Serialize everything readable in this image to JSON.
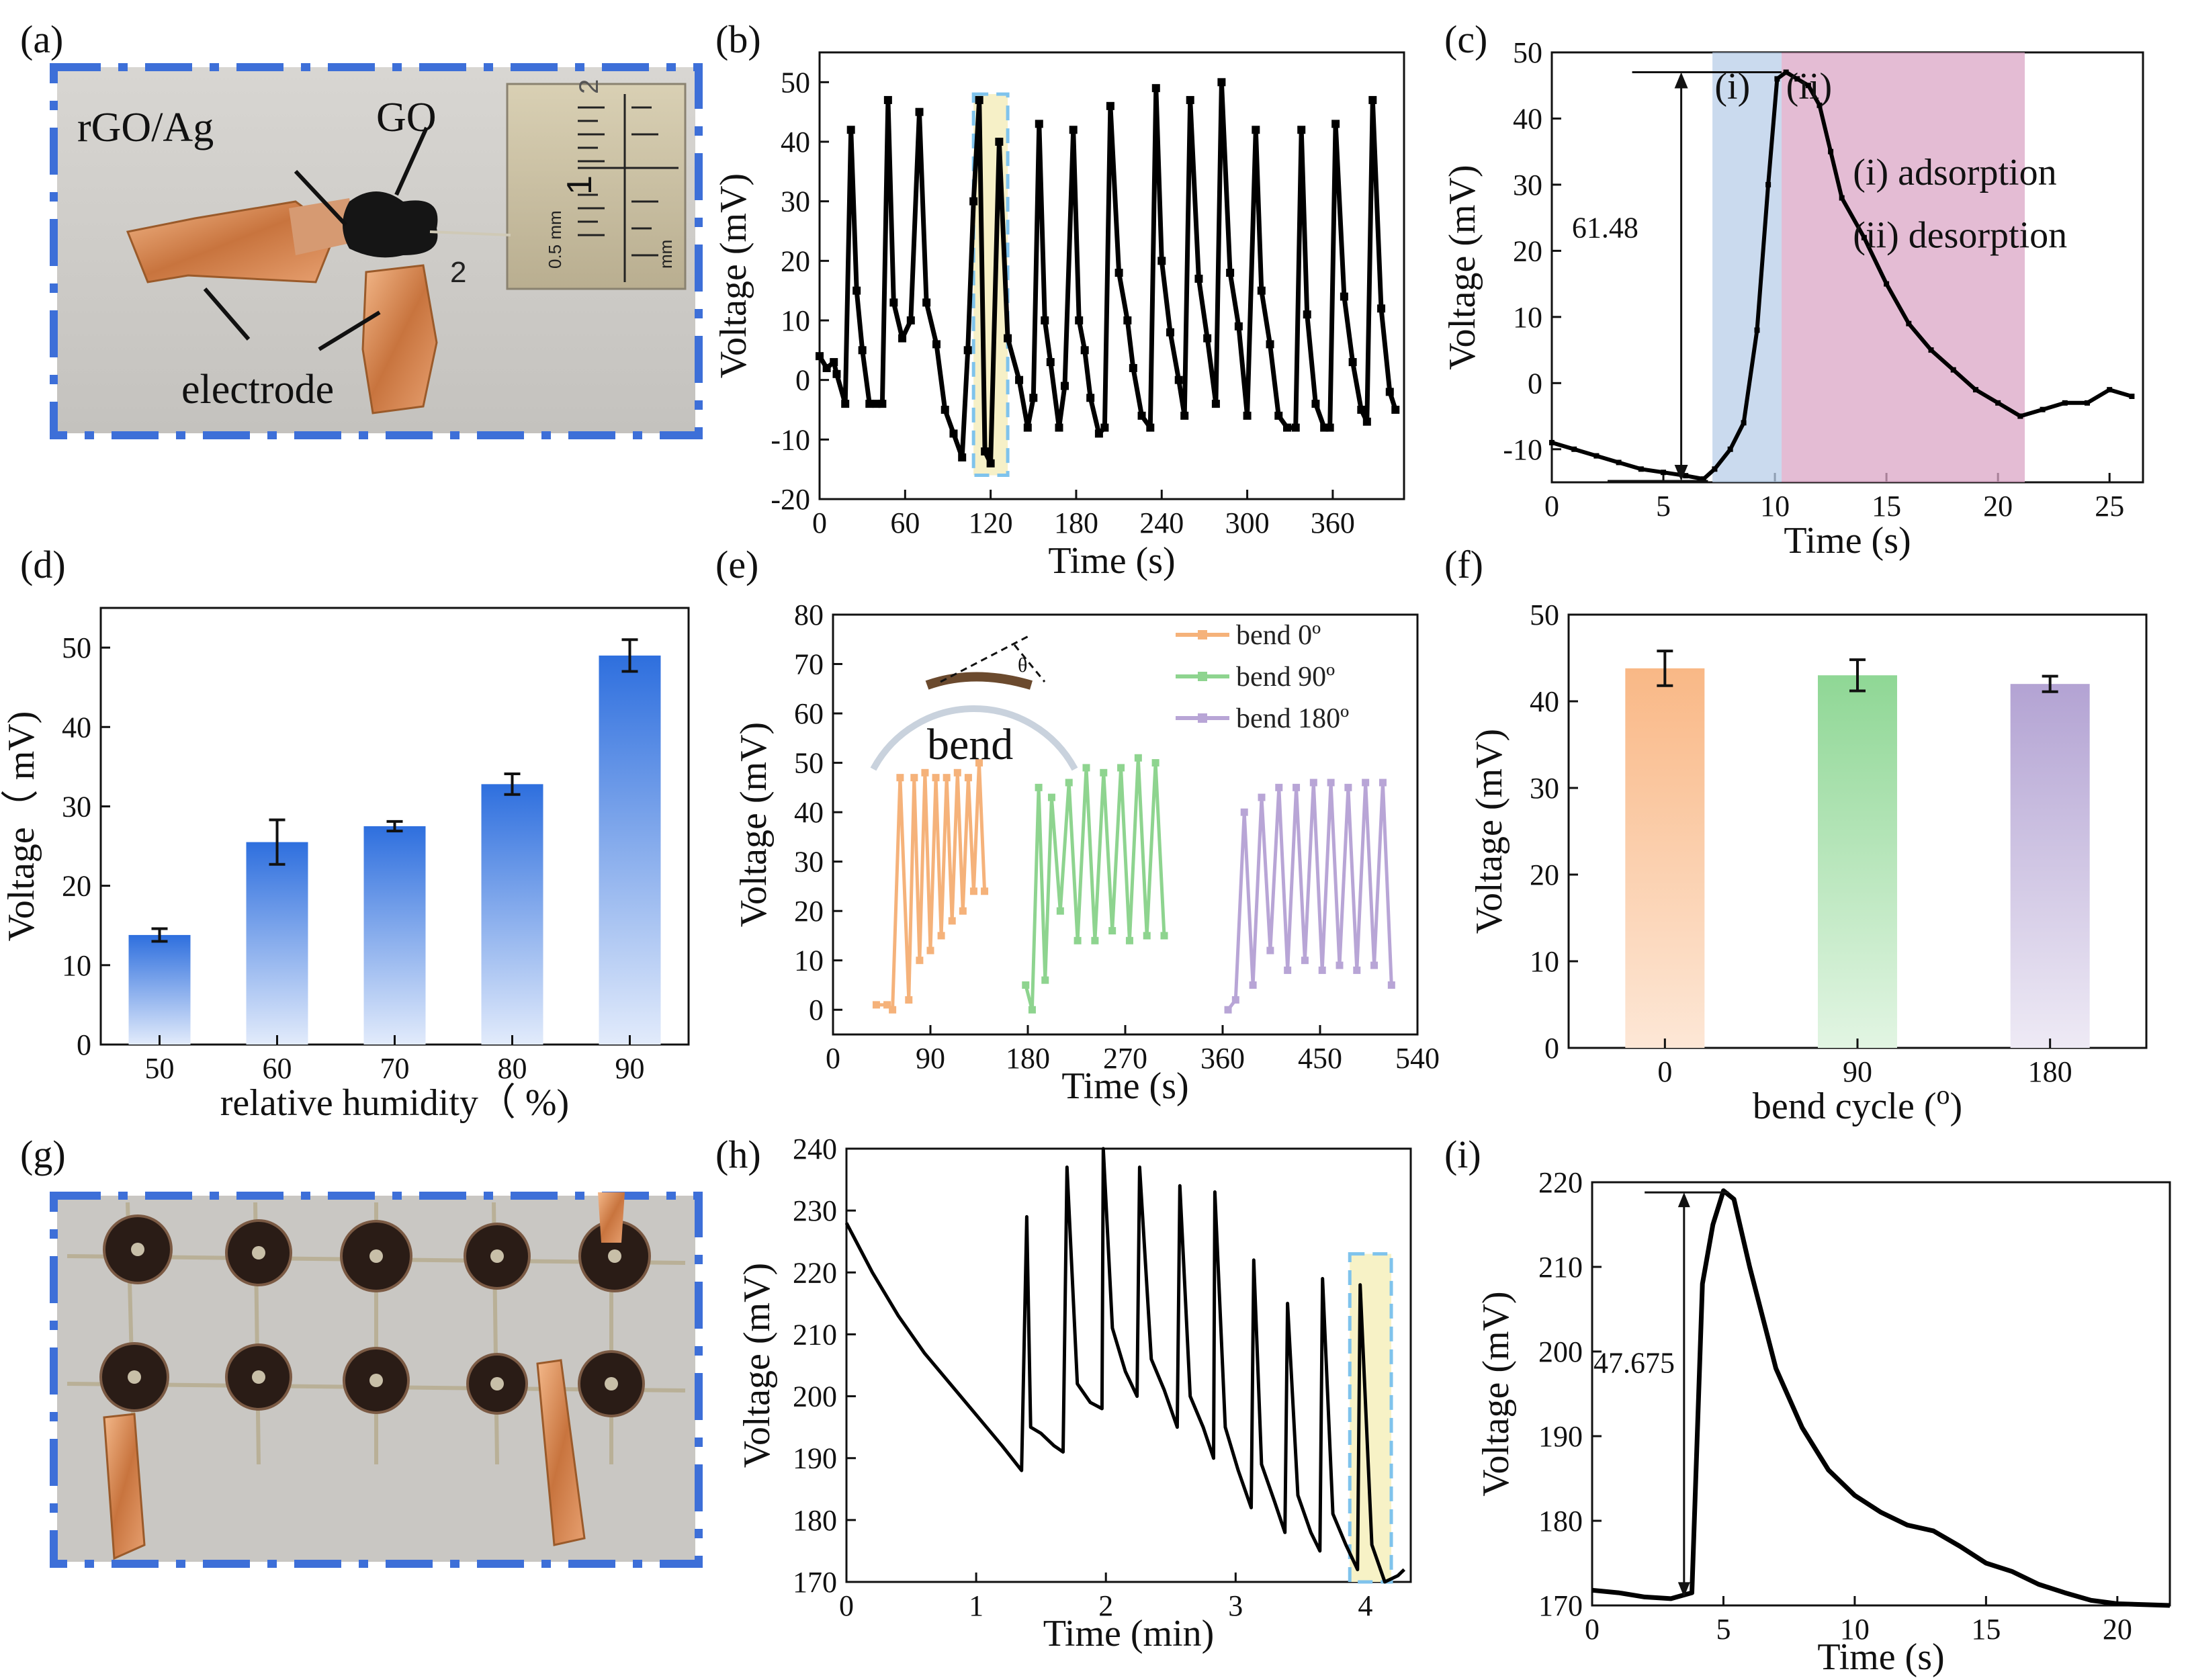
{
  "photos": {
    "a": {
      "letter": "(a)",
      "labels": {
        "rgo": "rGO/Ag",
        "go": "GO",
        "electrode": "electrode"
      },
      "ruler": {
        "unit_top": "0.5 mm",
        "unit_bottom": "mm",
        "mark1": "1",
        "mark2": "2",
        "handwritten": "2"
      }
    },
    "g": {
      "letter": "(g)"
    }
  },
  "chart_data": [
    {
      "id": "b",
      "letter": "(b)",
      "type": "line",
      "xlabel": "Time (s)",
      "ylabel": "Voltage (mV)",
      "xlim": [
        0,
        410
      ],
      "ylim": [
        -20,
        55
      ],
      "xticks": [
        0,
        60,
        120,
        180,
        240,
        300,
        360
      ],
      "yticks": [
        -20,
        -10,
        0,
        10,
        20,
        30,
        40,
        50
      ],
      "color": "#000000",
      "x": [
        0,
        5,
        10,
        12,
        18,
        22,
        26,
        30,
        35,
        40,
        44,
        48,
        52,
        58,
        64,
        70,
        75,
        82,
        88,
        94,
        100,
        104,
        108,
        112,
        116,
        120,
        126,
        132,
        140,
        146,
        150,
        154,
        158,
        162,
        168,
        172,
        178,
        182,
        186,
        190,
        196,
        200,
        204,
        210,
        216,
        220,
        226,
        232,
        236,
        240,
        246,
        252,
        256,
        260,
        266,
        272,
        278,
        282,
        288,
        294,
        300,
        306,
        310,
        316,
        322,
        328,
        334,
        338,
        342,
        348,
        354,
        358,
        362,
        368,
        374,
        380,
        384,
        388,
        394,
        400,
        404
      ],
      "y": [
        4,
        2,
        3,
        1,
        -4,
        42,
        15,
        5,
        -4,
        -4,
        -4,
        47,
        13,
        7,
        10,
        45,
        13,
        6,
        -5,
        -9,
        -13,
        5,
        30,
        47,
        -12,
        -14,
        40,
        7,
        0,
        -8,
        -3,
        43,
        10,
        3,
        -8,
        -1,
        42,
        10,
        5,
        -3,
        -9,
        -8,
        46,
        18,
        10,
        2,
        -6,
        -8,
        49,
        20,
        8,
        0,
        -6,
        47,
        17,
        7,
        -4,
        50,
        18,
        9,
        -6,
        42,
        15,
        6,
        -6,
        -8,
        -8,
        42,
        11,
        -4,
        -8,
        -8,
        43,
        14,
        3,
        -5,
        -7,
        47,
        12,
        -2,
        -5
      ]
    },
    {
      "id": "c",
      "letter": "(c)",
      "type": "line",
      "xlabel": "Time (s)",
      "ylabel": "Voltage (mV)",
      "xlim": [
        0,
        26.5
      ],
      "ylim": [
        -15,
        50
      ],
      "xticks": [
        0,
        5,
        10,
        15,
        20,
        25
      ],
      "yticks": [
        -10,
        0,
        10,
        20,
        30,
        40,
        50
      ],
      "color": "#000000",
      "x": [
        0,
        1,
        2,
        3,
        4,
        5,
        6,
        6.8,
        7.3,
        8,
        8.6,
        9.2,
        9.7,
        10.1,
        10.5,
        11,
        11.5,
        12,
        12.5,
        13,
        14,
        15,
        16,
        17,
        18,
        19,
        20,
        21,
        22,
        23,
        24,
        25,
        26
      ],
      "y": [
        -9,
        -10,
        -11,
        -12,
        -13,
        -13.5,
        -14,
        -14.5,
        -13,
        -10,
        -6,
        8,
        30,
        46,
        47,
        46,
        45,
        42,
        35,
        28,
        22,
        15,
        9,
        5,
        2,
        -1,
        -3,
        -5,
        -4,
        -3,
        -3,
        -1,
        -2
      ],
      "regions": [
        {
          "x0": 7.2,
          "x1": 10.3,
          "color": "#b8cde8"
        },
        {
          "x0": 10.3,
          "x1": 21.2,
          "color": "#dba6c6"
        }
      ],
      "annotations": {
        "i": "(i)",
        "ii": "(ii)",
        "legend1": "(i)  adsorption",
        "legend2": "(ii) desorption",
        "delta": "61.48"
      }
    },
    {
      "id": "d",
      "letter": "(d)",
      "type": "bar",
      "xlabel": "relative humidity（  %)",
      "ylabel": "Voltage（  mV)",
      "categories": [
        "50",
        "60",
        "70",
        "80",
        "90"
      ],
      "values": [
        13.8,
        25.5,
        27.5,
        32.8,
        49
      ],
      "errors": [
        0.8,
        2.8,
        0.6,
        1.3,
        2.0
      ],
      "ylim": [
        0,
        55
      ],
      "yticks": [
        0,
        10,
        20,
        30,
        40,
        50
      ],
      "color": "#2e6fde"
    },
    {
      "id": "e",
      "letter": "(e)",
      "type": "line",
      "xlabel": "Time (s)",
      "ylabel": "Voltage (mV)",
      "xlim": [
        0,
        540
      ],
      "ylim": [
        -5,
        80
      ],
      "xticks": [
        0,
        90,
        180,
        270,
        360,
        450,
        540
      ],
      "yticks": [
        0,
        10,
        20,
        30,
        40,
        50,
        60,
        70,
        80
      ],
      "inset_label": "bend",
      "inset_angle": "θ",
      "series": [
        {
          "name": "bend 0º",
          "color": "#f5b27a",
          "x": [
            40,
            50,
            55,
            62,
            70,
            75,
            80,
            85,
            90,
            95,
            100,
            105,
            110,
            115,
            120,
            125,
            130,
            135,
            140
          ],
          "y": [
            1,
            1,
            0,
            47,
            2,
            47,
            10,
            48,
            12,
            47,
            15,
            47,
            18,
            48,
            20,
            47,
            24,
            50,
            24
          ]
        },
        {
          "name": "bend 90º",
          "color": "#8ed48f",
          "x": [
            178,
            184,
            190,
            196,
            202,
            210,
            218,
            226,
            234,
            242,
            250,
            258,
            266,
            274,
            282,
            290,
            298,
            306
          ],
          "y": [
            5,
            0,
            45,
            6,
            43,
            20,
            46,
            14,
            49,
            14,
            48,
            16,
            49,
            14,
            51,
            15,
            50,
            15
          ]
        },
        {
          "name": "bend 180º",
          "color": "#b8a5d6",
          "x": [
            365,
            372,
            380,
            388,
            396,
            404,
            412,
            420,
            428,
            436,
            444,
            452,
            460,
            468,
            476,
            484,
            492,
            500,
            508,
            516
          ],
          "y": [
            0,
            2,
            40,
            5,
            43,
            12,
            45,
            8,
            45,
            10,
            46,
            8,
            46,
            9,
            45,
            8,
            46,
            9,
            46,
            5
          ]
        }
      ]
    },
    {
      "id": "f",
      "letter": "(f)",
      "type": "bar",
      "xlabel": "bend cycle (",
      "xlabel_sup": "o",
      "xlabel_end": ")",
      "ylabel": "Voltage (mV)",
      "categories": [
        "0",
        "90",
        "180"
      ],
      "values": [
        43.8,
        43,
        42
      ],
      "errors": [
        2.0,
        1.8,
        0.9
      ],
      "ylim": [
        0,
        50
      ],
      "yticks": [
        0,
        10,
        20,
        30,
        40,
        50
      ],
      "colors": [
        "#f9b886",
        "#8fd795",
        "#b3a3d3"
      ]
    },
    {
      "id": "h",
      "letter": "(h)",
      "type": "line",
      "xlabel": "Time (min)",
      "ylabel": "Voltage (mV)",
      "xlim": [
        0,
        4.35
      ],
      "ylim": [
        170,
        240
      ],
      "xticks": [
        0,
        1,
        2,
        3,
        4
      ],
      "yticks": [
        170,
        180,
        190,
        200,
        210,
        220,
        230,
        240
      ],
      "color": "#000000",
      "x": [
        0,
        0.2,
        0.4,
        0.6,
        0.8,
        1.0,
        1.2,
        1.35,
        1.39,
        1.42,
        1.5,
        1.6,
        1.67,
        1.7,
        1.78,
        1.88,
        1.97,
        1.98,
        2.05,
        2.15,
        2.24,
        2.26,
        2.35,
        2.45,
        2.55,
        2.57,
        2.65,
        2.75,
        2.83,
        2.84,
        2.92,
        3.02,
        3.12,
        3.14,
        3.2,
        3.3,
        3.38,
        3.4,
        3.48,
        3.58,
        3.65,
        3.67,
        3.75,
        3.85,
        3.94,
        3.96,
        4.05,
        4.15,
        4.25,
        4.3
      ],
      "y": [
        228,
        220,
        213,
        207,
        202,
        197,
        192,
        188,
        229,
        195,
        194,
        192,
        191,
        237,
        202,
        199,
        198,
        240,
        211,
        204,
        200,
        237,
        206,
        201,
        195,
        234,
        200,
        195,
        190,
        233,
        195,
        188,
        182,
        222,
        189,
        183,
        178,
        215,
        184,
        178,
        175,
        219,
        181,
        176,
        172,
        218,
        176,
        170,
        171,
        172
      ],
      "highlight": {
        "x0": 3.88,
        "x1": 4.2,
        "color": "#f7f2c6"
      }
    },
    {
      "id": "i",
      "letter": "(i)",
      "type": "line",
      "xlabel": "Time (s)",
      "ylabel": "Voltage (mV)",
      "xlim": [
        0,
        22
      ],
      "ylim": [
        170,
        220
      ],
      "xticks": [
        0,
        5,
        10,
        15,
        20
      ],
      "yticks": [
        170,
        180,
        190,
        200,
        210,
        220
      ],
      "color": "#000000",
      "x": [
        0,
        1,
        2,
        3,
        3.8,
        4.2,
        4.6,
        5,
        5.4,
        6,
        7,
        8,
        9,
        10,
        11,
        12,
        13,
        14,
        15,
        16,
        17,
        18,
        19,
        20,
        21,
        22
      ],
      "y": [
        171.8,
        171.5,
        171,
        170.8,
        171.5,
        208,
        215,
        219,
        218,
        210,
        198,
        191,
        186,
        183,
        181,
        179.5,
        178.8,
        177,
        175,
        174,
        172.5,
        171.5,
        170.6,
        170.2,
        170.1,
        170
      ],
      "annotations": {
        "delta": "47.675"
      }
    }
  ]
}
